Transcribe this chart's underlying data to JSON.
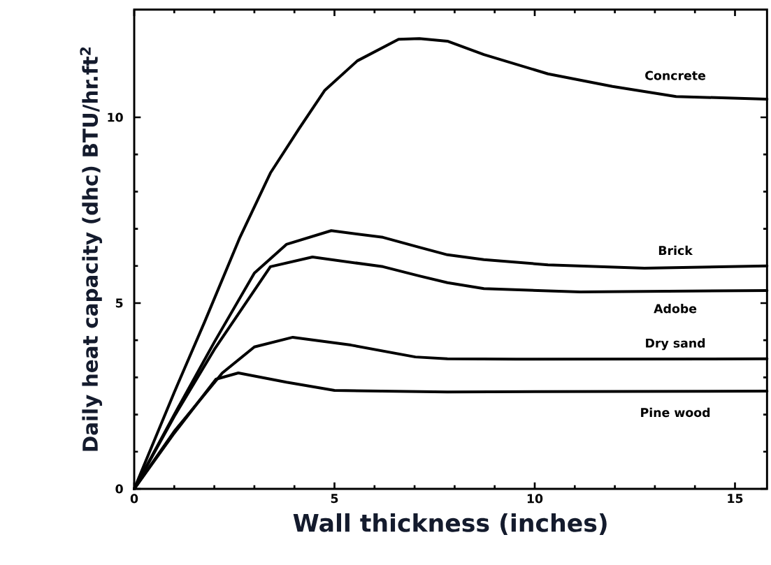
{
  "chart_data": {
    "type": "line",
    "xlabel": "Wall thickness (inches)",
    "ylabel": "Daily heat capacity (dhc) BTU/hr.ft$^{2}$",
    "xlim": [
      0,
      15.8
    ],
    "ylim": [
      0,
      12.9
    ],
    "xticks": [
      0,
      5,
      10,
      15
    ],
    "yticks": [
      0,
      5,
      10
    ],
    "grid": false,
    "legend": false,
    "marker": "none",
    "line_style": "solid",
    "series": [
      {
        "name": "Concrete",
        "color": "#000000",
        "x": [
          0,
          1,
          1.76,
          2.64,
          3.4,
          4.12,
          4.76,
          5.57,
          6.6,
          7.12,
          7.82,
          8.73,
          10.33,
          11.94,
          13.53,
          15.8
        ],
        "values": [
          0,
          2.6,
          4.5,
          6.77,
          8.5,
          9.7,
          10.73,
          11.52,
          12.1,
          12.12,
          12.05,
          11.69,
          11.17,
          10.83,
          10.56,
          10.49
        ]
      },
      {
        "name": "Brick",
        "color": "#000000",
        "x": [
          0,
          1,
          2,
          3,
          3.8,
          4.92,
          6.21,
          7.12,
          7.82,
          8.73,
          10.33,
          12.74,
          15.8
        ],
        "values": [
          0,
          2.0,
          3.95,
          5.81,
          6.58,
          6.95,
          6.77,
          6.5,
          6.3,
          6.17,
          6.03,
          5.94,
          6.0
        ]
      },
      {
        "name": "Adobe",
        "color": "#000000",
        "x": [
          0,
          1,
          2,
          3.4,
          4.45,
          6.21,
          7.12,
          7.82,
          8.73,
          11.13,
          15.8
        ],
        "values": [
          0,
          1.95,
          3.75,
          5.98,
          6.24,
          5.98,
          5.73,
          5.55,
          5.39,
          5.3,
          5.34
        ]
      },
      {
        "name": "Dry sand",
        "color": "#000000",
        "x": [
          0,
          1,
          2.2,
          3.0,
          3.96,
          5.41,
          7.02,
          7.82,
          9.53,
          15.8
        ],
        "values": [
          0,
          1.55,
          3.12,
          3.82,
          4.08,
          3.87,
          3.55,
          3.5,
          3.49,
          3.5
        ]
      },
      {
        "name": "Pine wood",
        "color": "#000000",
        "x": [
          0,
          1,
          2.04,
          2.6,
          3.8,
          5.0,
          7.82,
          15.8
        ],
        "values": [
          0,
          1.5,
          2.95,
          3.12,
          2.87,
          2.65,
          2.61,
          2.63
        ]
      }
    ]
  }
}
